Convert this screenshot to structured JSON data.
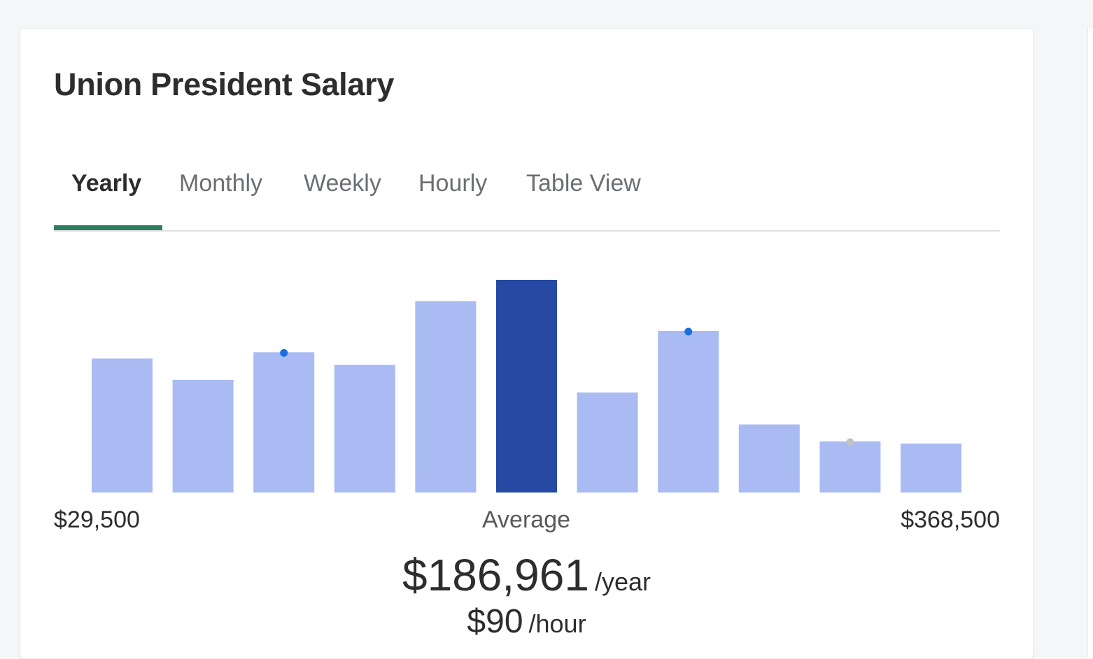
{
  "title": "Union President Salary",
  "tabs": [
    {
      "label": "Yearly",
      "active": true
    },
    {
      "label": "Monthly",
      "active": false
    },
    {
      "label": "Weekly",
      "active": false
    },
    {
      "label": "Hourly",
      "active": false
    },
    {
      "label": "Table View",
      "active": false
    }
  ],
  "colors": {
    "bar": "#a9bbf2",
    "bar_highlight": "#264aa3",
    "tab_underline": "#2e7d5e",
    "marker_blue": "#1a6fe0",
    "marker_gray": "#c2c2c2"
  },
  "chart_data": {
    "type": "bar",
    "title": "",
    "xlabel": "",
    "ylabel": "",
    "ylim": [
      0,
      100
    ],
    "values": [
      63,
      53,
      66,
      60,
      90,
      100,
      47,
      76,
      32,
      24,
      23
    ],
    "highlight_index": 5,
    "markers": [
      {
        "bar_index": 2,
        "color": "blue"
      },
      {
        "bar_index": 7,
        "color": "blue"
      },
      {
        "bar_index": 9,
        "color": "gray"
      }
    ],
    "x_min_label": "$29,500",
    "x_max_label": "$368,500",
    "center_label": "Average",
    "grid": false
  },
  "summary": {
    "yearly_value": "$186,961",
    "yearly_unit": "/year",
    "hourly_value": "$90",
    "hourly_unit": "/hour"
  }
}
